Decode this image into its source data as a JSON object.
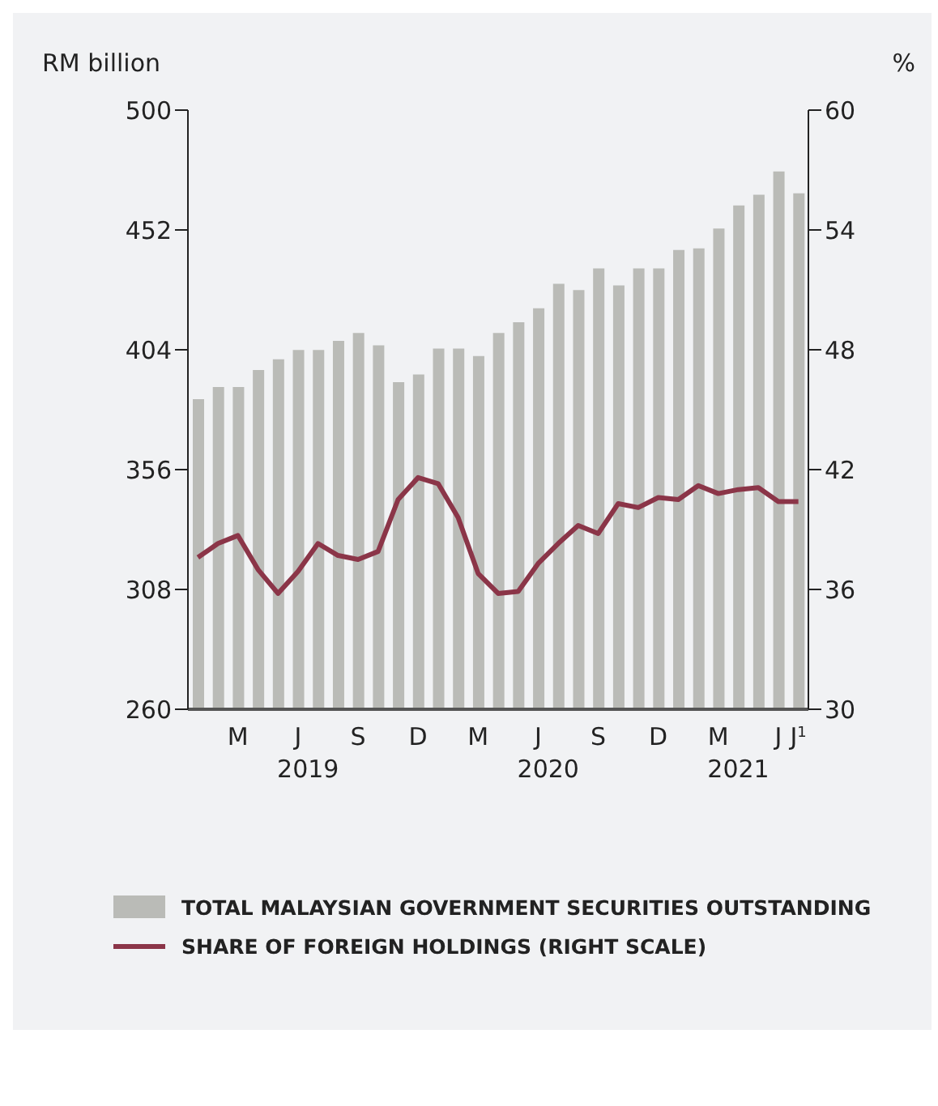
{
  "chart_data": {
    "type": "bar",
    "categories": [
      null,
      null,
      "M",
      null,
      null,
      "J",
      null,
      null,
      "S",
      null,
      null,
      "D",
      null,
      null,
      "M",
      null,
      null,
      "J",
      null,
      null,
      "S",
      null,
      null,
      "D",
      null,
      null,
      "M",
      null,
      null,
      "J",
      "J$^{1}$"
    ],
    "series": [
      {
        "name": "TOTAL MALAYSIAN GOVERNMENT SECURITIES OUTSTANDING",
        "color": "#babbb7",
        "values": [
          384.2,
          389.1,
          389.1,
          395.9,
          400.2,
          403.9,
          403.9,
          407.6,
          410.7,
          405.8,
          391,
          394.1,
          404.5,
          404.5,
          401.5,
          410.7,
          415,
          420.6,
          430.4,
          427.9,
          436.6,
          429.8,
          436.6,
          436.6,
          444,
          444.6,
          452.6,
          461.8,
          466.1,
          475.4,
          466.7
        ]
      },
      {
        "name": "SHARE OF FOREIGN HOLDINGS (RIGHT SCALE)",
        "type": "line",
        "axis": "y2",
        "color": "#8b3548",
        "values": [
          37.6,
          38.3,
          38.7,
          37.0,
          35.8,
          36.9,
          38.3,
          37.7,
          37.5,
          37.9,
          40.5,
          41.6,
          41.3,
          39.6,
          36.8,
          35.8,
          35.9,
          37.3,
          38.3,
          39.2,
          38.8,
          40.3,
          40.1,
          40.6,
          40.5,
          41.2,
          40.8,
          41.0,
          41.1,
          40.4,
          40.4
        ]
      }
    ],
    "ylabel": "RM billion",
    "y2label": "%",
    "ylim": [
      260,
      500
    ],
    "yticks": [
      260,
      308,
      356,
      404,
      452,
      500
    ],
    "y2lim": [
      30,
      60
    ],
    "y2ticks": [
      30,
      36,
      42,
      48,
      54,
      60
    ],
    "annotations": [
      "2019",
      "2020",
      "2021"
    ],
    "legend": "bottom",
    "marker": "none",
    "line_style": "solid"
  }
}
